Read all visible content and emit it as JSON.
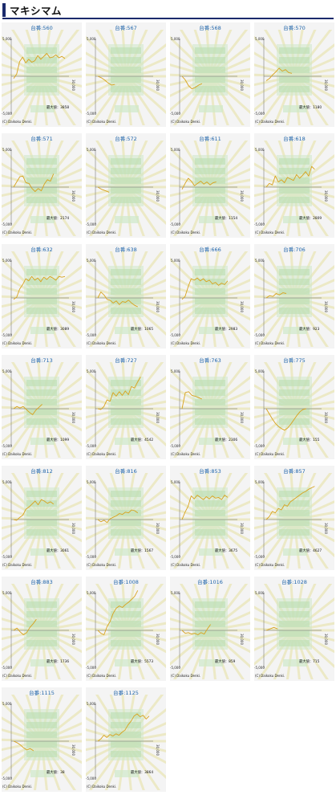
{
  "header": {
    "title": "マキシマム"
  },
  "chart_common": {
    "y_top_label": "5,000",
    "y_bottom_label": "-5,000",
    "x_end_label": "30,000",
    "max_prefix": "最大値：",
    "copyright": "(C) Daikoku Denki.",
    "line_color": "#d8a21c",
    "accent_color": "#2266aa"
  },
  "chart_data": [
    {
      "type": "line",
      "title": "台番:560",
      "max_value": "3858",
      "ylim": [
        -5000,
        5000
      ],
      "xlim": [
        0,
        30000
      ],
      "y": [
        -300,
        300,
        2000,
        2600,
        1800,
        2300,
        1900,
        2100,
        2800,
        2300,
        2700,
        3100,
        2500,
        2600,
        2900,
        2500,
        2700,
        2400
      ]
    },
    {
      "type": "line",
      "title": "台番:567",
      "max_value": "",
      "ylim": [
        -5000,
        5000
      ],
      "xlim": [
        0,
        30000
      ],
      "y": [
        0,
        -200,
        -500,
        -900,
        -1200,
        -1100
      ]
    },
    {
      "type": "line",
      "title": "台番:568",
      "max_value": "",
      "ylim": [
        -5000,
        5000
      ],
      "xlim": [
        0,
        30000
      ],
      "y": [
        0,
        -500,
        -1300,
        -1700,
        -1500,
        -1200,
        -1000
      ]
    },
    {
      "type": "line",
      "title": "台番:570",
      "max_value": "1180",
      "ylim": [
        -5000,
        5000
      ],
      "xlim": [
        0,
        30000
      ],
      "y": [
        -600,
        -300,
        200,
        600,
        1100,
        700,
        900,
        500,
        400
      ]
    },
    {
      "type": "line",
      "title": "台番:571",
      "max_value": "2174",
      "ylim": [
        -5000,
        5000
      ],
      "xlim": [
        0,
        30000
      ],
      "y": [
        0,
        700,
        1400,
        1500,
        600,
        500,
        -200,
        -600,
        -200,
        -500,
        400,
        1000,
        800,
        1800
      ]
    },
    {
      "type": "line",
      "title": "台番:572",
      "max_value": "",
      "ylim": [
        -5000,
        5000
      ],
      "xlim": [
        0,
        30000
      ],
      "y": [
        0,
        -300,
        -500,
        -700
      ]
    },
    {
      "type": "line",
      "title": "台番:611",
      "max_value": "1154",
      "ylim": [
        -5000,
        5000
      ],
      "xlim": [
        0,
        30000
      ],
      "y": [
        -300,
        500,
        1200,
        800,
        200,
        500,
        800,
        400,
        700,
        300,
        600,
        700
      ]
    },
    {
      "type": "line",
      "title": "台番:618",
      "max_value": "2809",
      "ylim": [
        -5000,
        5000
      ],
      "xlim": [
        0,
        30000
      ],
      "y": [
        0,
        500,
        300,
        1500,
        700,
        1000,
        600,
        1300,
        1100,
        900,
        1700,
        1200,
        1600,
        2100,
        1500,
        2800,
        2400
      ]
    },
    {
      "type": "line",
      "title": "台番:632",
      "max_value": "3089",
      "ylim": [
        -5000,
        5000
      ],
      "xlim": [
        0,
        30000
      ],
      "y": [
        -200,
        100,
        1200,
        1800,
        2600,
        2300,
        2900,
        2400,
        2700,
        2200,
        2800,
        2500,
        2900,
        2700,
        2400,
        2900,
        2800,
        2900
      ]
    },
    {
      "type": "line",
      "title": "台番:638",
      "max_value": "1065",
      "ylim": [
        -5000,
        5000
      ],
      "xlim": [
        0,
        30000
      ],
      "y": [
        0,
        800,
        400,
        -200,
        -300,
        -700,
        -400,
        -900,
        -500,
        -600,
        -300,
        -700,
        -1000,
        -1200
      ]
    },
    {
      "type": "line",
      "title": "台番:666",
      "max_value": "2983",
      "ylim": [
        -5000,
        5000
      ],
      "xlim": [
        0,
        30000
      ],
      "y": [
        -200,
        200,
        1500,
        2600,
        2400,
        2700,
        2300,
        2600,
        2200,
        2400,
        1900,
        2100,
        1700,
        2000,
        1800,
        2300
      ]
    },
    {
      "type": "line",
      "title": "台番:706",
      "max_value": "923",
      "ylim": [
        -5000,
        5000
      ],
      "xlim": [
        0,
        30000
      ],
      "y": [
        0,
        300,
        200,
        600,
        400,
        700,
        600
      ]
    },
    {
      "type": "line",
      "title": "台番:713",
      "max_value": "1099",
      "ylim": [
        -5000,
        5000
      ],
      "xlim": [
        0,
        30000
      ],
      "y": [
        0,
        300,
        100,
        300,
        -100,
        -500,
        -800,
        -200,
        200,
        600
      ]
    },
    {
      "type": "line",
      "title": "台番:727",
      "max_value": "4542",
      "ylim": [
        -5000,
        5000
      ],
      "xlim": [
        0,
        30000
      ],
      "y": [
        0,
        -100,
        300,
        1200,
        1000,
        2200,
        1700,
        2300,
        1800,
        2400,
        1900,
        3000,
        2800,
        3600,
        4300
      ]
    },
    {
      "type": "line",
      "title": "台番:763",
      "max_value": "2306",
      "ylim": [
        -5000,
        5000
      ],
      "xlim": [
        0,
        30000
      ],
      "y": [
        0,
        2200,
        2300,
        1800,
        1700,
        1500,
        1300
      ]
    },
    {
      "type": "line",
      "title": "台番:775",
      "max_value": "155",
      "ylim": [
        -5000,
        5000
      ],
      "xlim": [
        0,
        30000
      ],
      "y": [
        0,
        -700,
        -1400,
        -2000,
        -2400,
        -2700,
        -2900,
        -2600,
        -2100,
        -1500,
        -900,
        -400,
        -100,
        0
      ]
    },
    {
      "type": "line",
      "title": "台番:812",
      "max_value": "3061",
      "ylim": [
        -5000,
        5000
      ],
      "xlim": [
        0,
        30000
      ],
      "y": [
        0,
        -100,
        300,
        600,
        1400,
        1700,
        2100,
        2500,
        2000,
        2700,
        2500,
        2200,
        2400,
        2100
      ]
    },
    {
      "type": "line",
      "title": "台番:816",
      "max_value": "1567",
      "ylim": [
        -5000,
        5000
      ],
      "xlim": [
        0,
        30000
      ],
      "y": [
        0,
        -300,
        -100,
        -400,
        100,
        300,
        500,
        800,
        700,
        1000,
        900,
        1300,
        1200,
        900
      ]
    },
    {
      "type": "line",
      "title": "台番:853",
      "max_value": "3675",
      "ylim": [
        -5000,
        5000
      ],
      "xlim": [
        0,
        30000
      ],
      "y": [
        0,
        1000,
        1800,
        3200,
        2800,
        3300,
        3000,
        2700,
        3100,
        2800,
        3200,
        2900,
        3000,
        2700,
        3300,
        3000
      ]
    },
    {
      "type": "line",
      "title": "台番:857",
      "max_value": "4627",
      "ylim": [
        -5000,
        5000
      ],
      "xlim": [
        0,
        30000
      ],
      "y": [
        0,
        400,
        1100,
        900,
        1500,
        1300,
        2000,
        1800,
        2400,
        2700,
        3000,
        3300,
        3600,
        3800,
        4100,
        4300,
        4500
      ]
    },
    {
      "type": "line",
      "title": "台番:883",
      "max_value": "1736",
      "ylim": [
        -5000,
        5000
      ],
      "xlim": [
        0,
        30000
      ],
      "y": [
        0,
        300,
        -200,
        -600,
        -300,
        400,
        900,
        1500
      ]
    },
    {
      "type": "line",
      "title": "台番:1008",
      "max_value": "5573",
      "ylim": [
        -5000,
        5000
      ],
      "xlim": [
        0,
        30000
      ],
      "y": [
        0,
        -400,
        -600,
        500,
        1200,
        2300,
        3000,
        3300,
        3100,
        3500,
        3800,
        4200,
        4600,
        5400
      ]
    },
    {
      "type": "line",
      "title": "台番:1016",
      "max_value": "859",
      "ylim": [
        -5000,
        5000
      ],
      "xlim": [
        0,
        30000
      ],
      "y": [
        0,
        -400,
        -300,
        -500,
        -400,
        -600,
        -300,
        -500,
        200,
        800
      ]
    },
    {
      "type": "line",
      "title": "台番:1028",
      "max_value": "715",
      "ylim": [
        -5000,
        5000
      ],
      "xlim": [
        0,
        30000
      ],
      "y": [
        0,
        200,
        400,
        200
      ]
    },
    {
      "type": "line",
      "title": "台番:1115",
      "max_value": "38",
      "ylim": [
        -5000,
        5000
      ],
      "xlim": [
        0,
        30000
      ],
      "y": [
        0,
        -200,
        -500,
        -900,
        -1200,
        -1000,
        -1300
      ]
    },
    {
      "type": "line",
      "title": "台番:1125",
      "max_value": "3864",
      "ylim": [
        -5000,
        5000
      ],
      "xlim": [
        0,
        30000
      ],
      "y": [
        0,
        300,
        800,
        500,
        900,
        700,
        1000,
        800,
        1200,
        1500,
        2200,
        2700,
        3400,
        3700,
        3300,
        3500,
        3000,
        3400
      ]
    }
  ]
}
